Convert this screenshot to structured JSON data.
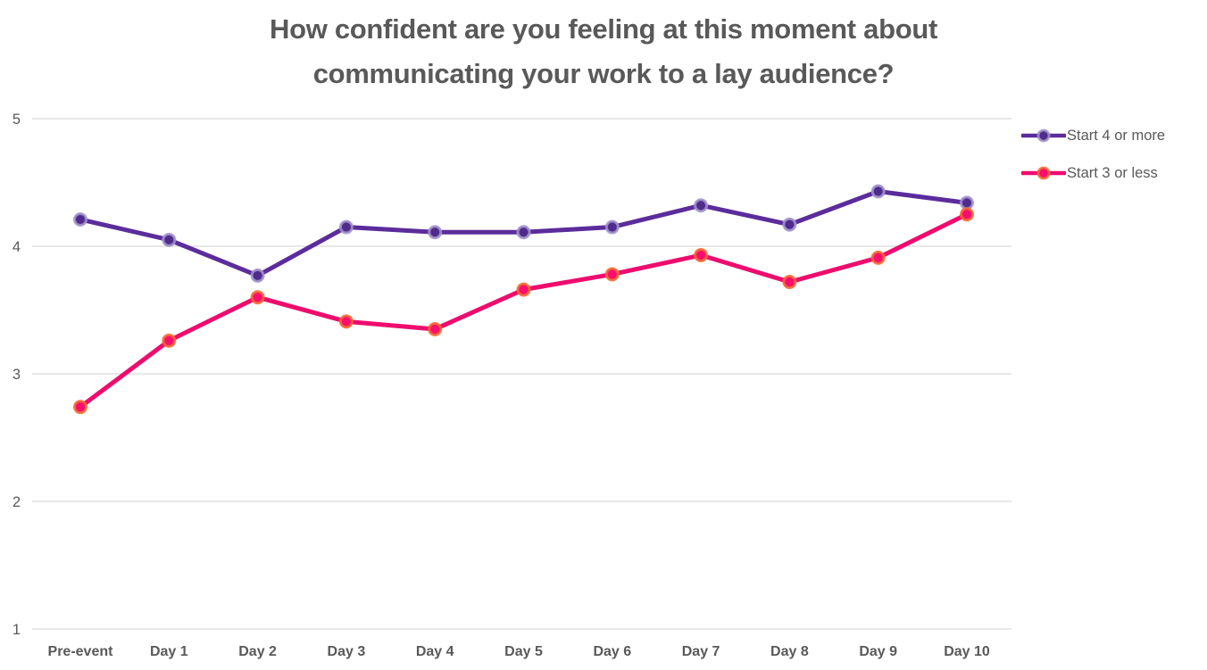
{
  "chart_data": {
    "type": "line",
    "title": "How confident are you feeling at this moment about communicating your work to a lay audience?",
    "categories": [
      "Pre-event",
      "Day 1",
      "Day 2",
      "Day 3",
      "Day 4",
      "Day 5",
      "Day 6",
      "Day 7",
      "Day 8",
      "Day 9",
      "Day 10"
    ],
    "series": [
      {
        "name": "Start 4 or more",
        "values": [
          4.21,
          4.05,
          3.77,
          4.15,
          4.11,
          4.11,
          4.15,
          4.32,
          4.17,
          4.43,
          4.34
        ],
        "line_color": "#5B2C9B",
        "marker_fill": "#4F2B8C",
        "marker_stroke": "#A294CC"
      },
      {
        "name": "Start 3 or less",
        "values": [
          2.74,
          3.26,
          3.6,
          3.41,
          3.35,
          3.66,
          3.78,
          3.93,
          3.72,
          3.91,
          4.25
        ],
        "line_color": "#EE0C6E",
        "marker_fill": "#F80D70",
        "marker_stroke": "#F4682F"
      }
    ],
    "xlabel": "",
    "ylabel": "",
    "ylim": [
      1,
      5
    ],
    "yticks": [
      "5",
      "4",
      "3",
      "2",
      "1"
    ],
    "ytick_values": [
      5,
      4,
      3,
      2,
      1
    ],
    "grid": true,
    "gridline_color": "#D9D9D9",
    "axis_text_color": "#595959",
    "title_color": "#595959",
    "legend_position": "right"
  }
}
